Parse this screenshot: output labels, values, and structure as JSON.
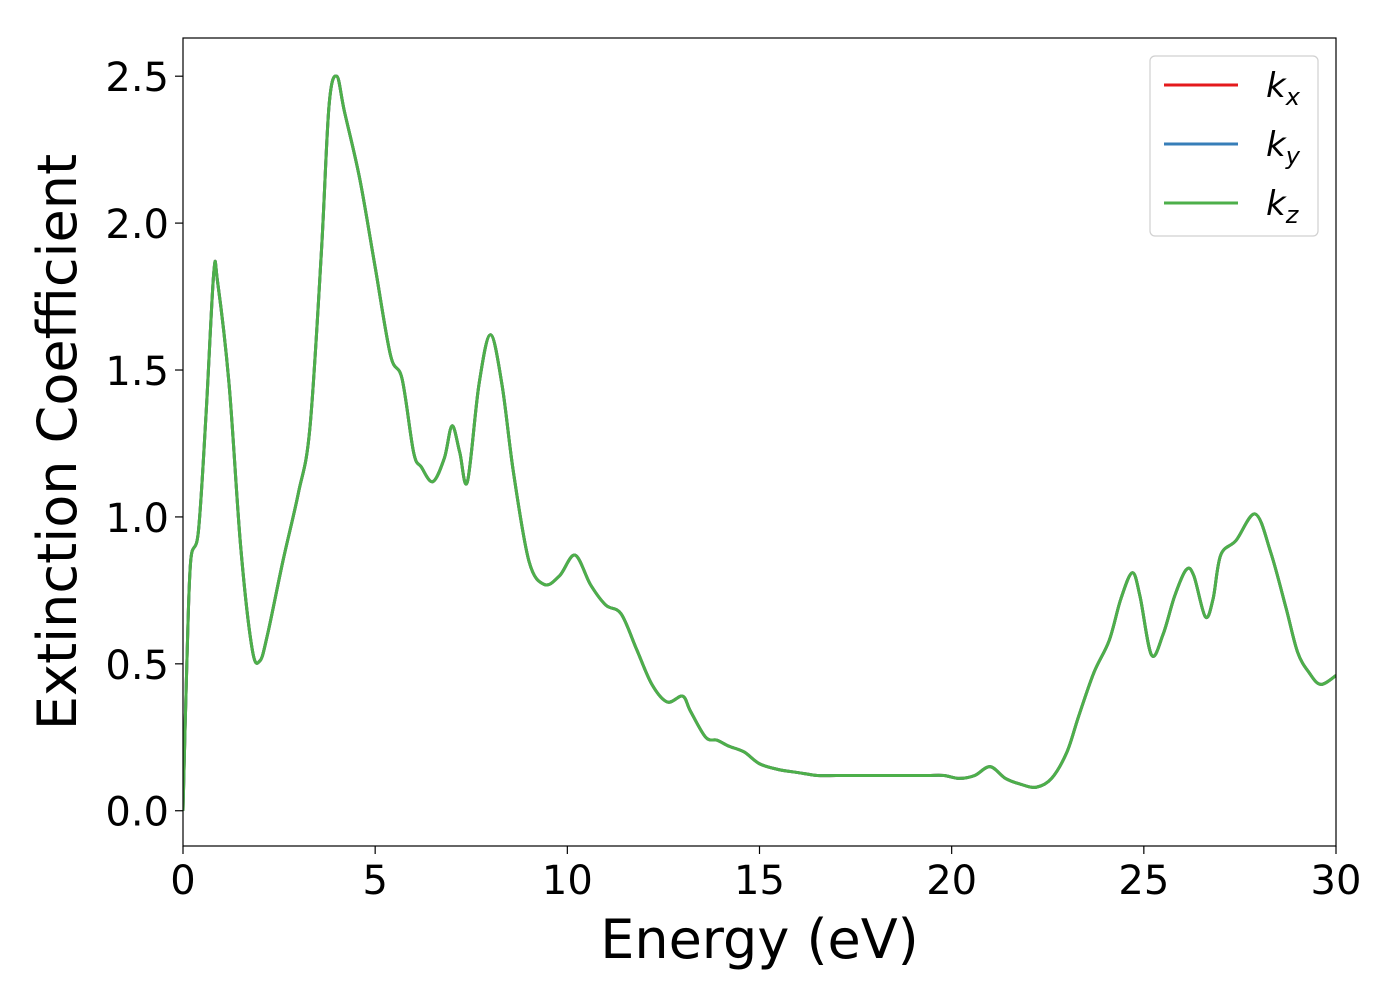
{
  "chart_data": {
    "type": "line",
    "xlabel": "Energy (eV)",
    "ylabel": "Extinction Coefficient",
    "xlim": [
      0,
      30
    ],
    "ylim": [
      -0.12,
      2.63
    ],
    "xticks": [
      0,
      5,
      10,
      15,
      20,
      25,
      30
    ],
    "xtick_labels": [
      "0",
      "5",
      "10",
      "15",
      "20",
      "25",
      "30"
    ],
    "yticks": [
      0.0,
      0.5,
      1.0,
      1.5,
      2.0,
      2.5
    ],
    "ytick_labels": [
      "0.0",
      "0.5",
      "1.0",
      "1.5",
      "2.0",
      "2.5"
    ],
    "grid": false,
    "legend_position": "top-right",
    "series": [
      {
        "name": "k",
        "subscript": "x",
        "color": "#e41a1c"
      },
      {
        "name": "k",
        "subscript": "y",
        "color": "#377eb8"
      },
      {
        "name": "k",
        "subscript": "z",
        "color": "#4daf4a"
      }
    ],
    "shared_curve": {
      "x": [
        0.0,
        0.1,
        0.2,
        0.4,
        0.6,
        0.8,
        0.9,
        1.2,
        1.5,
        1.8,
        2.0,
        2.2,
        2.6,
        3.0,
        3.3,
        3.6,
        3.8,
        4.0,
        4.2,
        4.6,
        5.0,
        5.4,
        5.7,
        6.0,
        6.2,
        6.5,
        6.8,
        7.0,
        7.2,
        7.4,
        7.7,
        8.0,
        8.3,
        8.6,
        9.0,
        9.4,
        9.8,
        10.2,
        10.6,
        11.0,
        11.4,
        11.8,
        12.2,
        12.6,
        13.0,
        13.2,
        13.6,
        13.9,
        14.2,
        14.6,
        15.0,
        15.5,
        16.0,
        16.5,
        17.0,
        17.5,
        18.0,
        18.5,
        19.0,
        19.4,
        19.8,
        20.2,
        20.6,
        21.0,
        21.4,
        21.8,
        22.2,
        22.6,
        23.0,
        23.3,
        23.7,
        24.1,
        24.4,
        24.7,
        24.9,
        25.2,
        25.5,
        25.8,
        26.1,
        26.3,
        26.6,
        26.8,
        27.0,
        27.4,
        27.9,
        28.3,
        28.7,
        29.0,
        29.3,
        29.6,
        30.0
      ],
      "y": [
        0.0,
        0.5,
        0.85,
        0.95,
        1.35,
        1.83,
        1.8,
        1.45,
        0.9,
        0.55,
        0.51,
        0.6,
        0.85,
        1.08,
        1.3,
        1.9,
        2.4,
        2.5,
        2.38,
        2.15,
        1.85,
        1.55,
        1.47,
        1.22,
        1.17,
        1.12,
        1.2,
        1.31,
        1.22,
        1.12,
        1.45,
        1.62,
        1.45,
        1.15,
        0.85,
        0.77,
        0.8,
        0.87,
        0.77,
        0.7,
        0.67,
        0.55,
        0.43,
        0.37,
        0.39,
        0.34,
        0.25,
        0.24,
        0.22,
        0.2,
        0.16,
        0.14,
        0.13,
        0.12,
        0.12,
        0.12,
        0.12,
        0.12,
        0.12,
        0.12,
        0.12,
        0.11,
        0.12,
        0.15,
        0.11,
        0.09,
        0.08,
        0.11,
        0.2,
        0.32,
        0.47,
        0.58,
        0.72,
        0.81,
        0.73,
        0.53,
        0.6,
        0.73,
        0.82,
        0.8,
        0.66,
        0.72,
        0.87,
        0.92,
        1.01,
        0.88,
        0.69,
        0.54,
        0.47,
        0.43,
        0.46
      ]
    }
  }
}
